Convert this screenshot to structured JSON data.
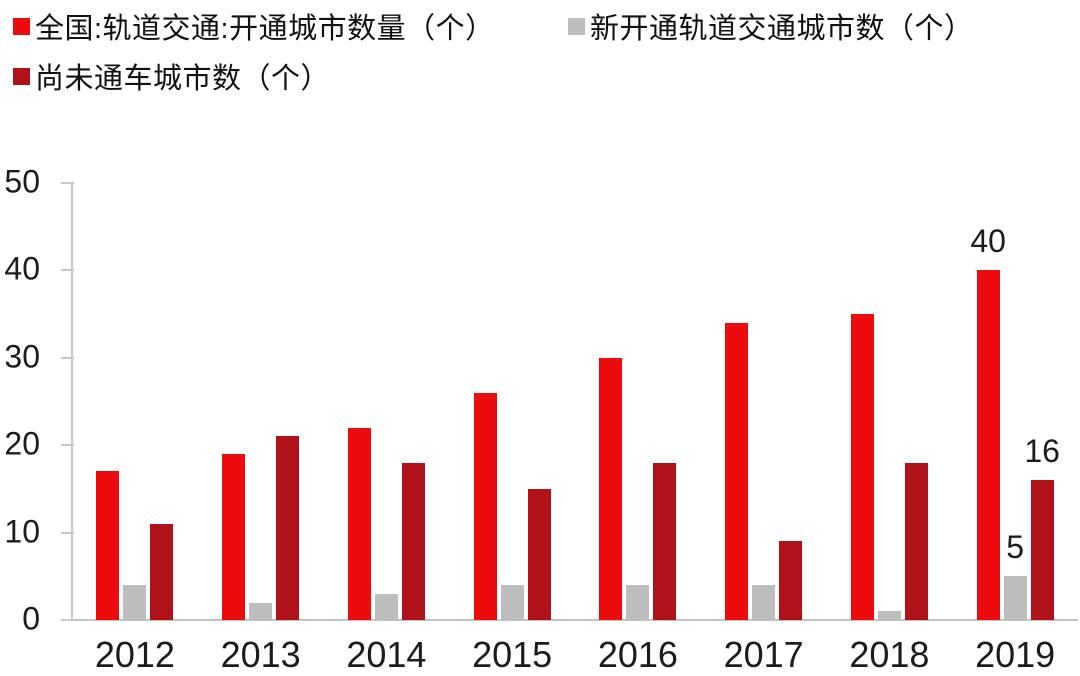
{
  "legend": {
    "items": [
      {
        "label": "全国:轨道交通:开通城市数量（个）",
        "color": "#ec0c0e",
        "marker": "square"
      },
      {
        "label": "新开通轨道交通城市数（个）",
        "color": "#bdbdbd",
        "marker": "square"
      },
      {
        "label": "尚未通车城市数（个）",
        "color": "#b01219",
        "marker": "square"
      }
    ]
  },
  "chart_data": {
    "type": "bar",
    "title": "",
    "xlabel": "",
    "ylabel": "",
    "categories": [
      "2012",
      "2013",
      "2014",
      "2015",
      "2016",
      "2017",
      "2018",
      "2019"
    ],
    "series": [
      {
        "name": "全国:轨道交通:开通城市数量（个）",
        "color": "#ec0c0e",
        "values": [
          17,
          19,
          22,
          26,
          30,
          34,
          35,
          40
        ]
      },
      {
        "name": "新开通轨道交通城市数（个）",
        "color": "#bdbdbd",
        "values": [
          4,
          2,
          3,
          4,
          4,
          4,
          1,
          5
        ]
      },
      {
        "name": "尚未通车城市数（个）",
        "color": "#b01219",
        "values": [
          11,
          21,
          18,
          15,
          18,
          9,
          18,
          16
        ]
      }
    ],
    "bar_labels": [
      {
        "category": "2019",
        "series_index": 0,
        "text": "40"
      },
      {
        "category": "2019",
        "series_index": 1,
        "text": "5"
      },
      {
        "category": "2019",
        "series_index": 2,
        "text": "16"
      }
    ],
    "ylim": [
      0,
      50
    ],
    "yticks": [
      0,
      10,
      20,
      30,
      40,
      50
    ],
    "grid": false,
    "legend_position": "top-left",
    "axis_color": "#c9c9c9"
  }
}
